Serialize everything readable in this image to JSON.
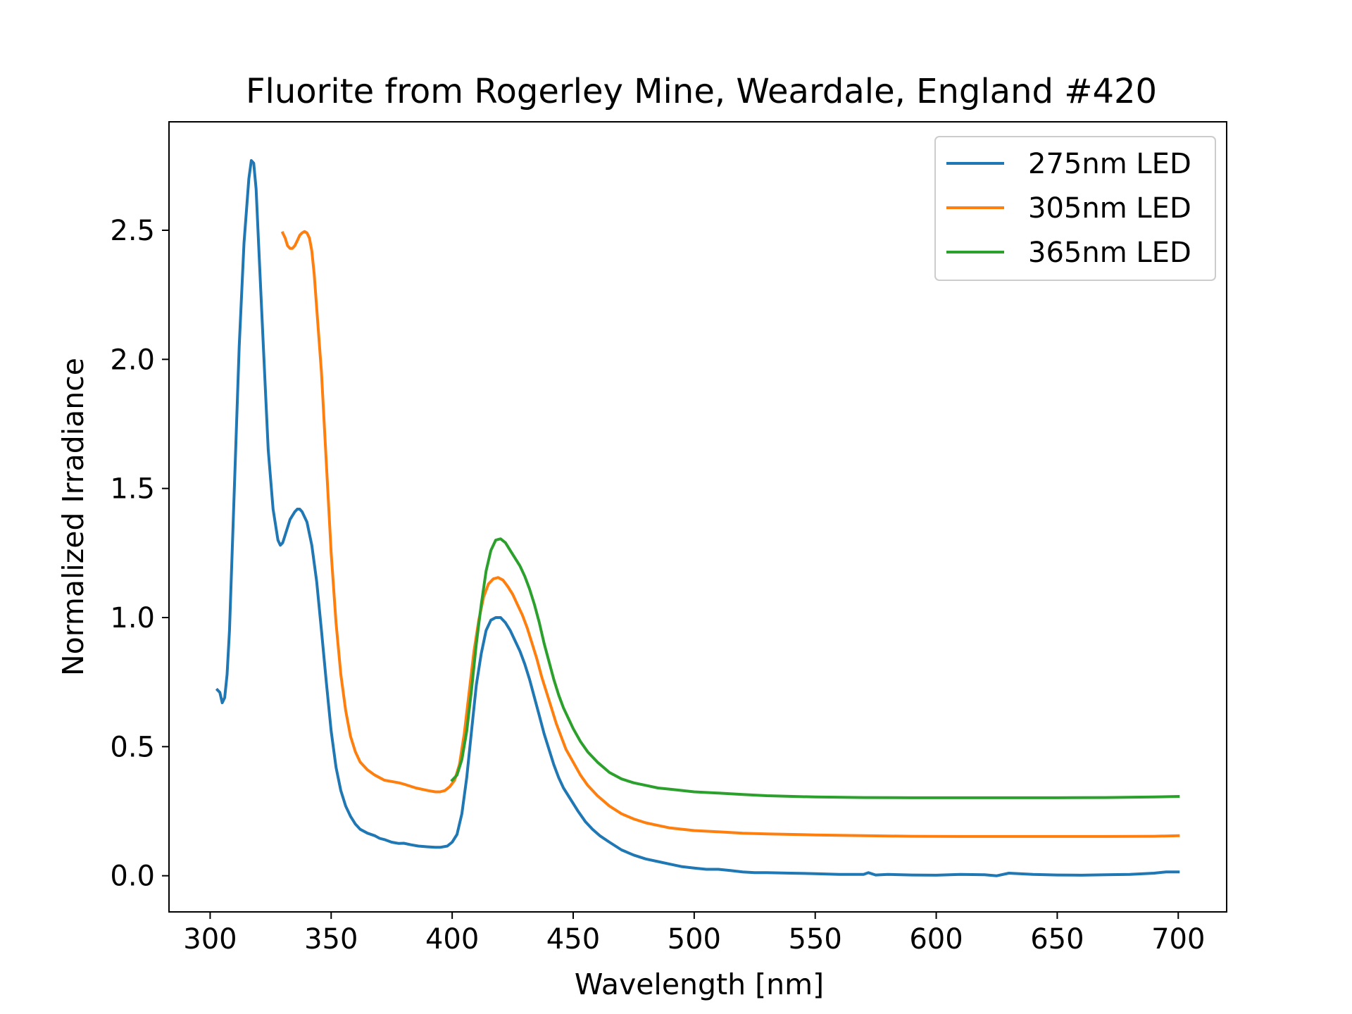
{
  "chart_data": {
    "type": "line",
    "title": "Fluorite from Rogerley Mine, Weardale, England #420",
    "xlabel": "Wavelength [nm]",
    "ylabel": "Normalized Irradiance",
    "xlim": [
      283,
      720
    ],
    "ylim": [
      -0.14,
      2.92
    ],
    "xticks": [
      300,
      350,
      400,
      450,
      500,
      550,
      600,
      650,
      700
    ],
    "xtick_labels": [
      "300",
      "350",
      "400",
      "450",
      "500",
      "550",
      "600",
      "650",
      "700"
    ],
    "yticks": [
      0.0,
      0.5,
      1.0,
      1.5,
      2.0,
      2.5
    ],
    "ytick_labels": [
      "0.0",
      "0.5",
      "1.0",
      "1.5",
      "2.0",
      "2.5"
    ],
    "grid": false,
    "legend_position": "top-right",
    "series": [
      {
        "name": "275nm LED",
        "color": "#1f77b4",
        "points": [
          [
            303,
            0.72
          ],
          [
            304,
            0.71
          ],
          [
            305,
            0.67
          ],
          [
            306,
            0.69
          ],
          [
            307,
            0.78
          ],
          [
            308,
            0.95
          ],
          [
            310,
            1.5
          ],
          [
            312,
            2.05
          ],
          [
            314,
            2.45
          ],
          [
            316,
            2.7
          ],
          [
            317,
            2.77
          ],
          [
            318,
            2.76
          ],
          [
            319,
            2.66
          ],
          [
            320,
            2.45
          ],
          [
            322,
            2.05
          ],
          [
            324,
            1.65
          ],
          [
            326,
            1.42
          ],
          [
            328,
            1.3
          ],
          [
            329,
            1.28
          ],
          [
            330,
            1.29
          ],
          [
            331,
            1.32
          ],
          [
            333,
            1.38
          ],
          [
            335,
            1.41
          ],
          [
            336,
            1.42
          ],
          [
            337,
            1.42
          ],
          [
            338,
            1.41
          ],
          [
            340,
            1.37
          ],
          [
            342,
            1.28
          ],
          [
            344,
            1.14
          ],
          [
            346,
            0.95
          ],
          [
            348,
            0.75
          ],
          [
            350,
            0.56
          ],
          [
            352,
            0.42
          ],
          [
            354,
            0.33
          ],
          [
            356,
            0.27
          ],
          [
            358,
            0.23
          ],
          [
            360,
            0.2
          ],
          [
            362,
            0.18
          ],
          [
            365,
            0.165
          ],
          [
            368,
            0.155
          ],
          [
            370,
            0.145
          ],
          [
            372,
            0.14
          ],
          [
            375,
            0.13
          ],
          [
            378,
            0.125
          ],
          [
            380,
            0.126
          ],
          [
            383,
            0.12
          ],
          [
            386,
            0.115
          ],
          [
            390,
            0.112
          ],
          [
            393,
            0.11
          ],
          [
            395,
            0.11
          ],
          [
            398,
            0.115
          ],
          [
            400,
            0.13
          ],
          [
            402,
            0.16
          ],
          [
            404,
            0.24
          ],
          [
            406,
            0.38
          ],
          [
            408,
            0.56
          ],
          [
            410,
            0.74
          ],
          [
            412,
            0.86
          ],
          [
            414,
            0.95
          ],
          [
            416,
            0.99
          ],
          [
            418,
            1.0
          ],
          [
            420,
            1.0
          ],
          [
            422,
            0.98
          ],
          [
            424,
            0.95
          ],
          [
            426,
            0.91
          ],
          [
            428,
            0.87
          ],
          [
            430,
            0.82
          ],
          [
            432,
            0.76
          ],
          [
            434,
            0.69
          ],
          [
            436,
            0.62
          ],
          [
            438,
            0.55
          ],
          [
            440,
            0.49
          ],
          [
            442,
            0.43
          ],
          [
            444,
            0.38
          ],
          [
            446,
            0.34
          ],
          [
            448,
            0.31
          ],
          [
            450,
            0.28
          ],
          [
            452,
            0.25
          ],
          [
            455,
            0.21
          ],
          [
            458,
            0.18
          ],
          [
            461,
            0.155
          ],
          [
            465,
            0.13
          ],
          [
            470,
            0.1
          ],
          [
            475,
            0.08
          ],
          [
            480,
            0.065
          ],
          [
            485,
            0.055
          ],
          [
            490,
            0.045
          ],
          [
            495,
            0.035
          ],
          [
            500,
            0.03
          ],
          [
            505,
            0.025
          ],
          [
            510,
            0.025
          ],
          [
            515,
            0.02
          ],
          [
            520,
            0.015
          ],
          [
            525,
            0.012
          ],
          [
            530,
            0.012
          ],
          [
            540,
            0.01
          ],
          [
            550,
            0.008
          ],
          [
            560,
            0.005
          ],
          [
            570,
            0.005
          ],
          [
            572,
            0.012
          ],
          [
            575,
            0.003
          ],
          [
            580,
            0.005
          ],
          [
            590,
            0.003
          ],
          [
            600,
            0.002
          ],
          [
            610,
            0.005
          ],
          [
            620,
            0.004
          ],
          [
            625,
            0.0
          ],
          [
            630,
            0.01
          ],
          [
            640,
            0.005
          ],
          [
            650,
            0.003
          ],
          [
            660,
            0.002
          ],
          [
            670,
            0.004
          ],
          [
            680,
            0.005
          ],
          [
            690,
            0.01
          ],
          [
            695,
            0.015
          ],
          [
            700,
            0.015
          ]
        ]
      },
      {
        "name": "305nm LED",
        "color": "#ff7f0e",
        "points": [
          [
            330,
            2.49
          ],
          [
            331,
            2.47
          ],
          [
            332,
            2.44
          ],
          [
            333,
            2.43
          ],
          [
            334,
            2.43
          ],
          [
            335,
            2.44
          ],
          [
            336,
            2.46
          ],
          [
            337,
            2.48
          ],
          [
            338,
            2.49
          ],
          [
            339,
            2.495
          ],
          [
            340,
            2.49
          ],
          [
            341,
            2.47
          ],
          [
            342,
            2.42
          ],
          [
            343,
            2.33
          ],
          [
            344,
            2.2
          ],
          [
            346,
            1.95
          ],
          [
            348,
            1.6
          ],
          [
            350,
            1.25
          ],
          [
            352,
            0.98
          ],
          [
            354,
            0.78
          ],
          [
            356,
            0.64
          ],
          [
            358,
            0.54
          ],
          [
            360,
            0.48
          ],
          [
            362,
            0.44
          ],
          [
            365,
            0.41
          ],
          [
            368,
            0.39
          ],
          [
            370,
            0.38
          ],
          [
            372,
            0.37
          ],
          [
            375,
            0.365
          ],
          [
            378,
            0.36
          ],
          [
            380,
            0.355
          ],
          [
            385,
            0.34
          ],
          [
            390,
            0.33
          ],
          [
            393,
            0.325
          ],
          [
            395,
            0.325
          ],
          [
            397,
            0.33
          ],
          [
            399,
            0.345
          ],
          [
            401,
            0.37
          ],
          [
            403,
            0.43
          ],
          [
            405,
            0.55
          ],
          [
            407,
            0.71
          ],
          [
            409,
            0.87
          ],
          [
            411,
            0.99
          ],
          [
            413,
            1.08
          ],
          [
            415,
            1.13
          ],
          [
            417,
            1.15
          ],
          [
            419,
            1.155
          ],
          [
            421,
            1.145
          ],
          [
            423,
            1.12
          ],
          [
            425,
            1.09
          ],
          [
            427,
            1.05
          ],
          [
            429,
            1.01
          ],
          [
            431,
            0.96
          ],
          [
            433,
            0.9
          ],
          [
            435,
            0.84
          ],
          [
            437,
            0.77
          ],
          [
            439,
            0.71
          ],
          [
            441,
            0.65
          ],
          [
            443,
            0.59
          ],
          [
            445,
            0.54
          ],
          [
            447,
            0.49
          ],
          [
            450,
            0.44
          ],
          [
            453,
            0.39
          ],
          [
            456,
            0.35
          ],
          [
            460,
            0.31
          ],
          [
            465,
            0.27
          ],
          [
            470,
            0.24
          ],
          [
            475,
            0.22
          ],
          [
            480,
            0.205
          ],
          [
            485,
            0.195
          ],
          [
            490,
            0.185
          ],
          [
            500,
            0.175
          ],
          [
            510,
            0.17
          ],
          [
            520,
            0.165
          ],
          [
            530,
            0.162
          ],
          [
            550,
            0.158
          ],
          [
            570,
            0.155
          ],
          [
            590,
            0.153
          ],
          [
            610,
            0.152
          ],
          [
            630,
            0.152
          ],
          [
            650,
            0.152
          ],
          [
            670,
            0.152
          ],
          [
            690,
            0.153
          ],
          [
            700,
            0.155
          ]
        ]
      },
      {
        "name": "365nm LED",
        "color": "#2ca02c",
        "points": [
          [
            400,
            0.37
          ],
          [
            402,
            0.39
          ],
          [
            404,
            0.45
          ],
          [
            406,
            0.56
          ],
          [
            408,
            0.72
          ],
          [
            410,
            0.9
          ],
          [
            412,
            1.05
          ],
          [
            414,
            1.18
          ],
          [
            416,
            1.26
          ],
          [
            418,
            1.3
          ],
          [
            420,
            1.305
          ],
          [
            422,
            1.29
          ],
          [
            424,
            1.26
          ],
          [
            426,
            1.23
          ],
          [
            428,
            1.2
          ],
          [
            430,
            1.16
          ],
          [
            432,
            1.11
          ],
          [
            434,
            1.05
          ],
          [
            436,
            0.98
          ],
          [
            438,
            0.9
          ],
          [
            440,
            0.83
          ],
          [
            442,
            0.76
          ],
          [
            444,
            0.7
          ],
          [
            446,
            0.65
          ],
          [
            448,
            0.61
          ],
          [
            450,
            0.57
          ],
          [
            453,
            0.52
          ],
          [
            456,
            0.48
          ],
          [
            460,
            0.44
          ],
          [
            465,
            0.4
          ],
          [
            470,
            0.375
          ],
          [
            475,
            0.36
          ],
          [
            480,
            0.35
          ],
          [
            485,
            0.34
          ],
          [
            490,
            0.335
          ],
          [
            500,
            0.325
          ],
          [
            510,
            0.32
          ],
          [
            520,
            0.315
          ],
          [
            530,
            0.31
          ],
          [
            550,
            0.305
          ],
          [
            570,
            0.303
          ],
          [
            590,
            0.302
          ],
          [
            610,
            0.302
          ],
          [
            630,
            0.302
          ],
          [
            650,
            0.302
          ],
          [
            670,
            0.303
          ],
          [
            690,
            0.305
          ],
          [
            700,
            0.307
          ]
        ]
      }
    ]
  }
}
